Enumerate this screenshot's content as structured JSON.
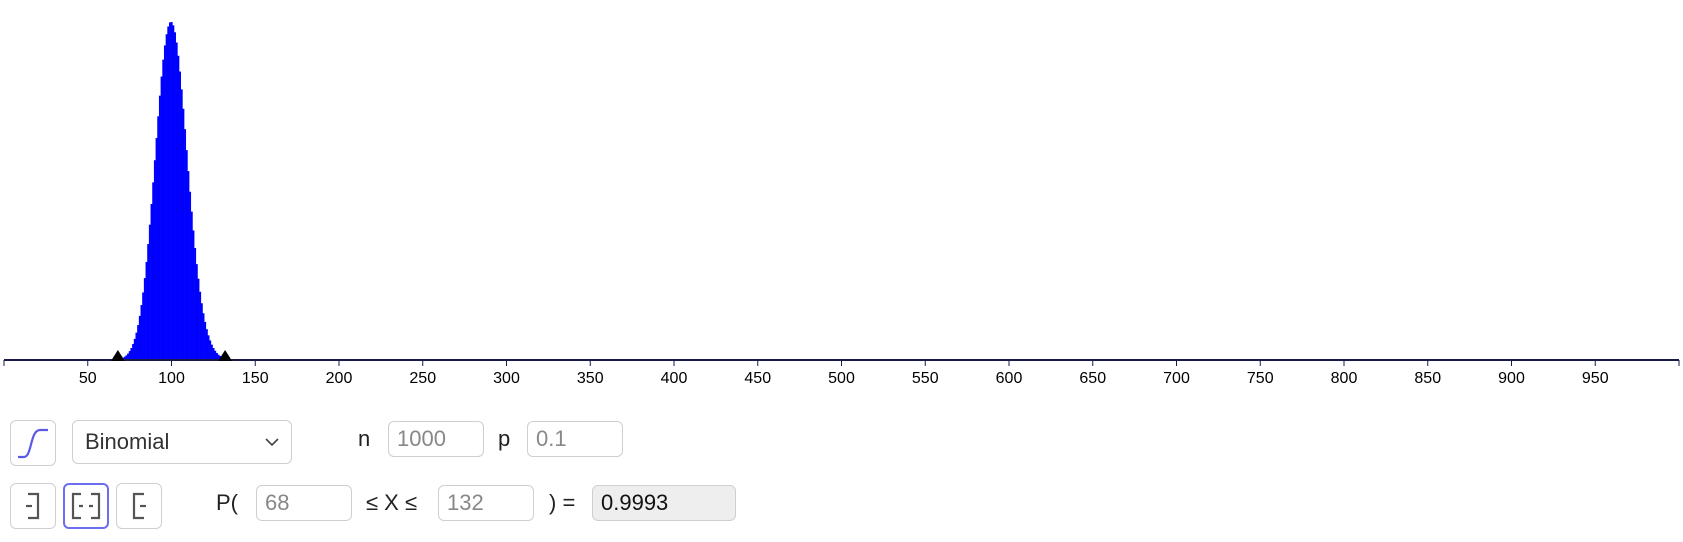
{
  "chart_data": {
    "type": "bar",
    "distribution": "Binomial",
    "parameters": {
      "n": 1000,
      "p": 0.1
    },
    "x_range": [
      0,
      1000
    ],
    "xticks": [
      50,
      100,
      150,
      200,
      250,
      300,
      350,
      400,
      450,
      500,
      550,
      600,
      650,
      700,
      750,
      800,
      850,
      900,
      950
    ],
    "bar_color": "#0000ff",
    "interval_bounds": [
      68,
      132
    ],
    "grid": false,
    "title": "",
    "xlabel": "",
    "ylabel": ""
  },
  "controls": {
    "cumulative_toggle_icon": "cumulative-curve-icon",
    "distribution_select": {
      "value": "Binomial"
    },
    "params": [
      {
        "label": "n",
        "value": "1000"
      },
      {
        "label": "p",
        "value": "0.1"
      }
    ],
    "interval_mode": {
      "options": [
        "left-sided-icon",
        "two-sided-icon",
        "right-sided-icon"
      ],
      "selected": "two-sided-icon"
    },
    "probability": {
      "prefix": "P(",
      "lower": "68",
      "middle": "≤ X ≤",
      "upper": "132",
      "suffix": ") =",
      "result": "0.9993"
    }
  },
  "colors": {
    "accent": "#6b6ef0",
    "bars": "#0000ff",
    "axis": "#1a1a4a"
  }
}
